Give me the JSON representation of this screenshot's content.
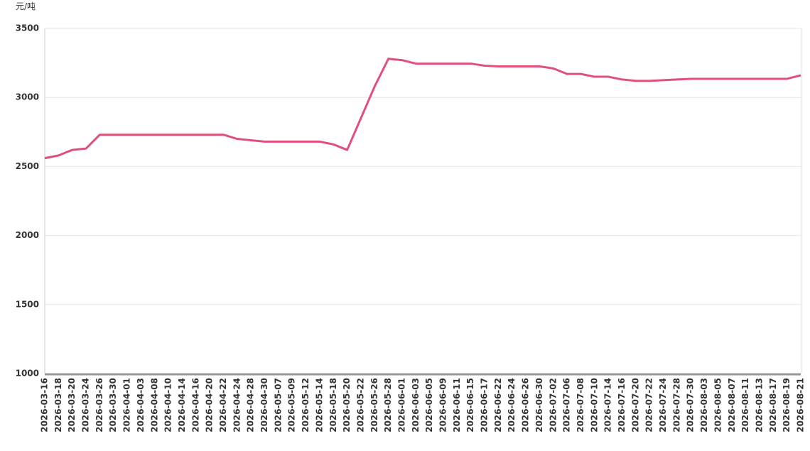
{
  "chart_data": {
    "type": "line",
    "y_label": "元/吨",
    "categories": [
      "2026-03-16",
      "2026-03-18",
      "2026-03-20",
      "2026-03-24",
      "2026-03-26",
      "2026-03-30",
      "2026-04-01",
      "2026-04-03",
      "2026-04-08",
      "2026-04-10",
      "2026-04-14",
      "2026-04-16",
      "2026-04-20",
      "2026-04-22",
      "2026-04-24",
      "2026-04-28",
      "2026-04-30",
      "2026-05-07",
      "2026-05-09",
      "2026-05-12",
      "2026-05-14",
      "2026-05-18",
      "2026-05-20",
      "2026-05-22",
      "2026-05-26",
      "2026-05-28",
      "2026-06-01",
      "2026-06-03",
      "2026-06-05",
      "2026-06-09",
      "2026-06-11",
      "2026-06-15",
      "2026-06-17",
      "2026-06-22",
      "2026-06-24",
      "2026-06-26",
      "2026-06-30",
      "2026-07-02",
      "2026-07-06",
      "2026-07-08",
      "2026-07-10",
      "2026-07-14",
      "2026-07-16",
      "2026-07-20",
      "2026-07-22",
      "2026-07-24",
      "2026-07-28",
      "2026-07-30",
      "2026-08-03",
      "2026-08-05",
      "2026-08-07",
      "2026-08-11",
      "2026-08-13",
      "2026-08-17",
      "2026-08-19",
      "2026-08-21"
    ],
    "series": [
      {
        "color": "#e0507a",
        "values": [
          2560,
          2580,
          2620,
          2630,
          2730,
          2730,
          2730,
          2730,
          2730,
          2730,
          2730,
          2730,
          2730,
          2730,
          2700,
          2690,
          2680,
          2680,
          2680,
          2680,
          2680,
          2660,
          2620,
          2850,
          3080,
          3280,
          3270,
          3245,
          3245,
          3245,
          3245,
          3245,
          3230,
          3225,
          3225,
          3225,
          3225,
          3210,
          3170,
          3170,
          3150,
          3150,
          3130,
          3120,
          3120,
          3125,
          3130,
          3135,
          3135,
          3135,
          3135,
          3135,
          3135,
          3135,
          3135,
          3160
        ]
      }
    ],
    "ylim": [
      1000,
      3500
    ],
    "yticks": [
      1000,
      1500,
      2000,
      2500,
      3000,
      3500
    ],
    "grid": true
  }
}
